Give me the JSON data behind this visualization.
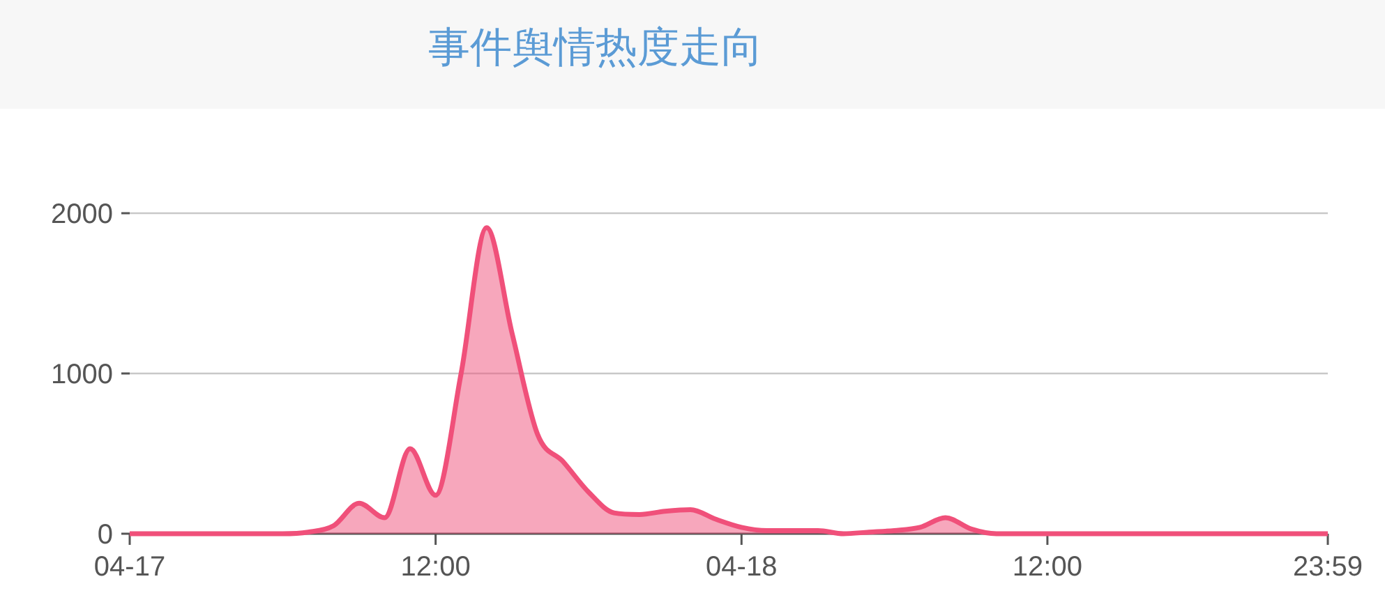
{
  "chart_data": {
    "type": "area",
    "title": "事件舆情热度走向",
    "categories": [
      "04-17",
      null,
      null,
      null,
      null,
      null,
      null,
      null,
      null,
      null,
      null,
      null,
      "12:00",
      null,
      null,
      null,
      null,
      null,
      null,
      null,
      null,
      null,
      null,
      null,
      "04-18",
      null,
      null,
      null,
      null,
      null,
      null,
      null,
      null,
      null,
      null,
      null,
      "12:00",
      null,
      null,
      null,
      null,
      null,
      null,
      null,
      null,
      null,
      null,
      "23:59"
    ],
    "values": [
      0,
      0,
      0,
      0,
      0,
      0,
      0,
      10,
      50,
      190,
      100,
      530,
      240,
      1000,
      1910,
      1250,
      620,
      450,
      260,
      130,
      120,
      140,
      150,
      90,
      40,
      20,
      20,
      20,
      0,
      10,
      20,
      40,
      100,
      30,
      0,
      0,
      0,
      0,
      0,
      0,
      0,
      0,
      0,
      0,
      0,
      0,
      0,
      0
    ],
    "color": "#f0507a",
    "ylim": [
      0,
      2000
    ],
    "yticks": [
      0,
      1000,
      2000
    ],
    "grid": "y"
  }
}
